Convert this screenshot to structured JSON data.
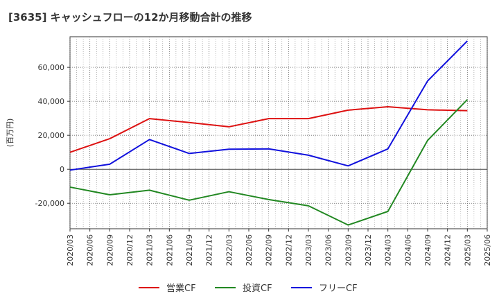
{
  "chart_data": {
    "type": "line",
    "title": "[3635]  キャッシュフローの12か月移動合計の推移",
    "ylabel": "(百万円)",
    "xlabel": "",
    "ylim": [
      -35000,
      78000
    ],
    "yticks": [
      -20000,
      0,
      20000,
      40000,
      60000
    ],
    "ytick_labels": [
      "-20,000",
      "0",
      "20,000",
      "40,000",
      "60,000"
    ],
    "xtick_labels": [
      "2020/03",
      "2020/06",
      "2020/09",
      "2020/12",
      "2021/03",
      "2021/06",
      "2021/09",
      "2021/12",
      "2022/03",
      "2022/06",
      "2022/09",
      "2022/12",
      "2023/03",
      "2023/06",
      "2023/09",
      "2023/12",
      "2024/03",
      "2024/06",
      "2024/09",
      "2024/12",
      "2025/03",
      "2025/06"
    ],
    "x": [
      "2020/03",
      "2020/09",
      "2021/03",
      "2021/09",
      "2022/03",
      "2022/09",
      "2023/03",
      "2023/09",
      "2024/03",
      "2024/09",
      "2025/03"
    ],
    "series": [
      {
        "name": "営業CF",
        "color": "#dd1111",
        "values": [
          10000,
          18000,
          29800,
          27500,
          25000,
          29800,
          29800,
          34800,
          36800,
          35000,
          34500
        ]
      },
      {
        "name": "投資CF",
        "color": "#228822",
        "values": [
          -10500,
          -15000,
          -12300,
          -18200,
          -13200,
          -17800,
          -21500,
          -32800,
          -24800,
          17000,
          41000
        ]
      },
      {
        "name": "フリーCF",
        "color": "#1111dd",
        "values": [
          -500,
          3000,
          17500,
          9300,
          11800,
          12000,
          8300,
          2000,
          12000,
          52000,
          75500
        ]
      }
    ],
    "grid": true,
    "legend_position": "bottom-center"
  }
}
